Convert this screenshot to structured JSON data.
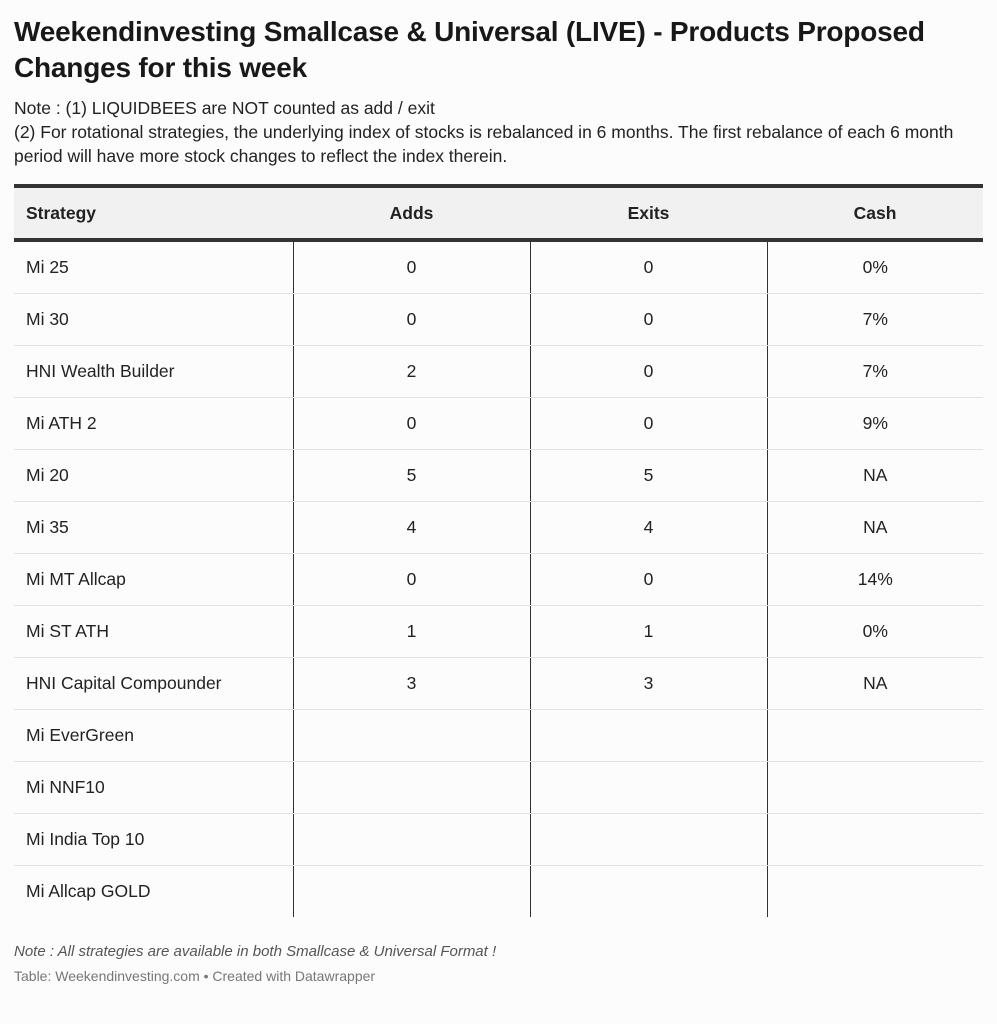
{
  "title": "Weekendinvesting Smallcase & Universal (LIVE) - Products Proposed Changes for this week",
  "notes": [
    "Note : (1) LIQUIDBEES are NOT counted as add / exit",
    "(2) For rotational strategies, the underlying index of stocks is rebalanced in 6 months. The first rebalance of each 6 month period will have more stock changes to reflect the index therein."
  ],
  "table": {
    "headers": [
      "Strategy",
      "Adds",
      "Exits",
      "Cash"
    ],
    "rows": [
      [
        "Mi 25",
        "0",
        "0",
        "0%"
      ],
      [
        "Mi 30",
        "0",
        "0",
        "7%"
      ],
      [
        "HNI Wealth Builder",
        "2",
        "0",
        "7%"
      ],
      [
        "Mi ATH 2",
        "0",
        "0",
        "9%"
      ],
      [
        "Mi 20",
        "5",
        "5",
        "NA"
      ],
      [
        "Mi 35",
        "4",
        "4",
        "NA"
      ],
      [
        "Mi MT Allcap",
        "0",
        "0",
        "14%"
      ],
      [
        "Mi ST ATH",
        "1",
        "1",
        "0%"
      ],
      [
        "HNI Capital Compounder",
        "3",
        "3",
        "NA"
      ],
      [
        "Mi EverGreen",
        "",
        "",
        ""
      ],
      [
        "Mi NNF10",
        "",
        "",
        ""
      ],
      [
        "Mi India Top 10",
        "",
        "",
        ""
      ],
      [
        "Mi Allcap GOLD",
        "",
        "",
        ""
      ]
    ]
  },
  "footer": {
    "note": "Note : All strategies are available in both Smallcase & Universal Format !",
    "source": "Table: Weekendinvesting.com • Created with Datawrapper"
  }
}
